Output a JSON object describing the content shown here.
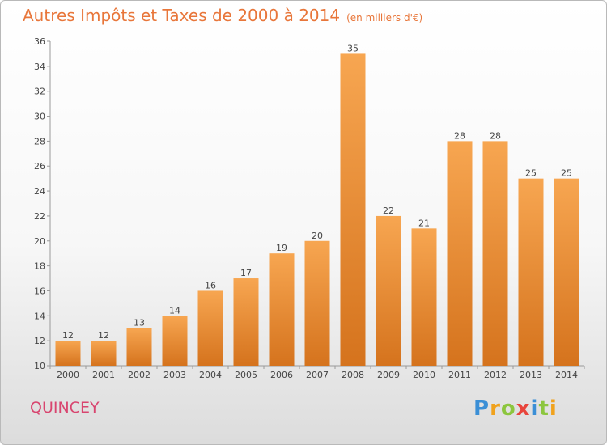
{
  "title": "Autres Impôts et Taxes de 2000 à 2014",
  "subtitle": "(en milliers d'€)",
  "city": "QUINCEY",
  "brand": "Proxiti",
  "colors": {
    "bar_top": "#f7a651",
    "bar_bottom": "#d5731d",
    "title": "#e8763a",
    "city": "#d8456f"
  },
  "chart_data": {
    "type": "bar",
    "categories": [
      "2000",
      "2001",
      "2002",
      "2003",
      "2004",
      "2005",
      "2006",
      "2007",
      "2008",
      "2009",
      "2010",
      "2011",
      "2012",
      "2013",
      "2014"
    ],
    "values": [
      12,
      12,
      13,
      14,
      16,
      17,
      19,
      20,
      35,
      22,
      21,
      28,
      28,
      25,
      25
    ],
    "ylim": [
      10,
      36
    ],
    "yticks": [
      10,
      12,
      14,
      16,
      18,
      20,
      22,
      24,
      26,
      28,
      30,
      32,
      34,
      36
    ],
    "grid": false,
    "xlabel": "",
    "ylabel": ""
  }
}
